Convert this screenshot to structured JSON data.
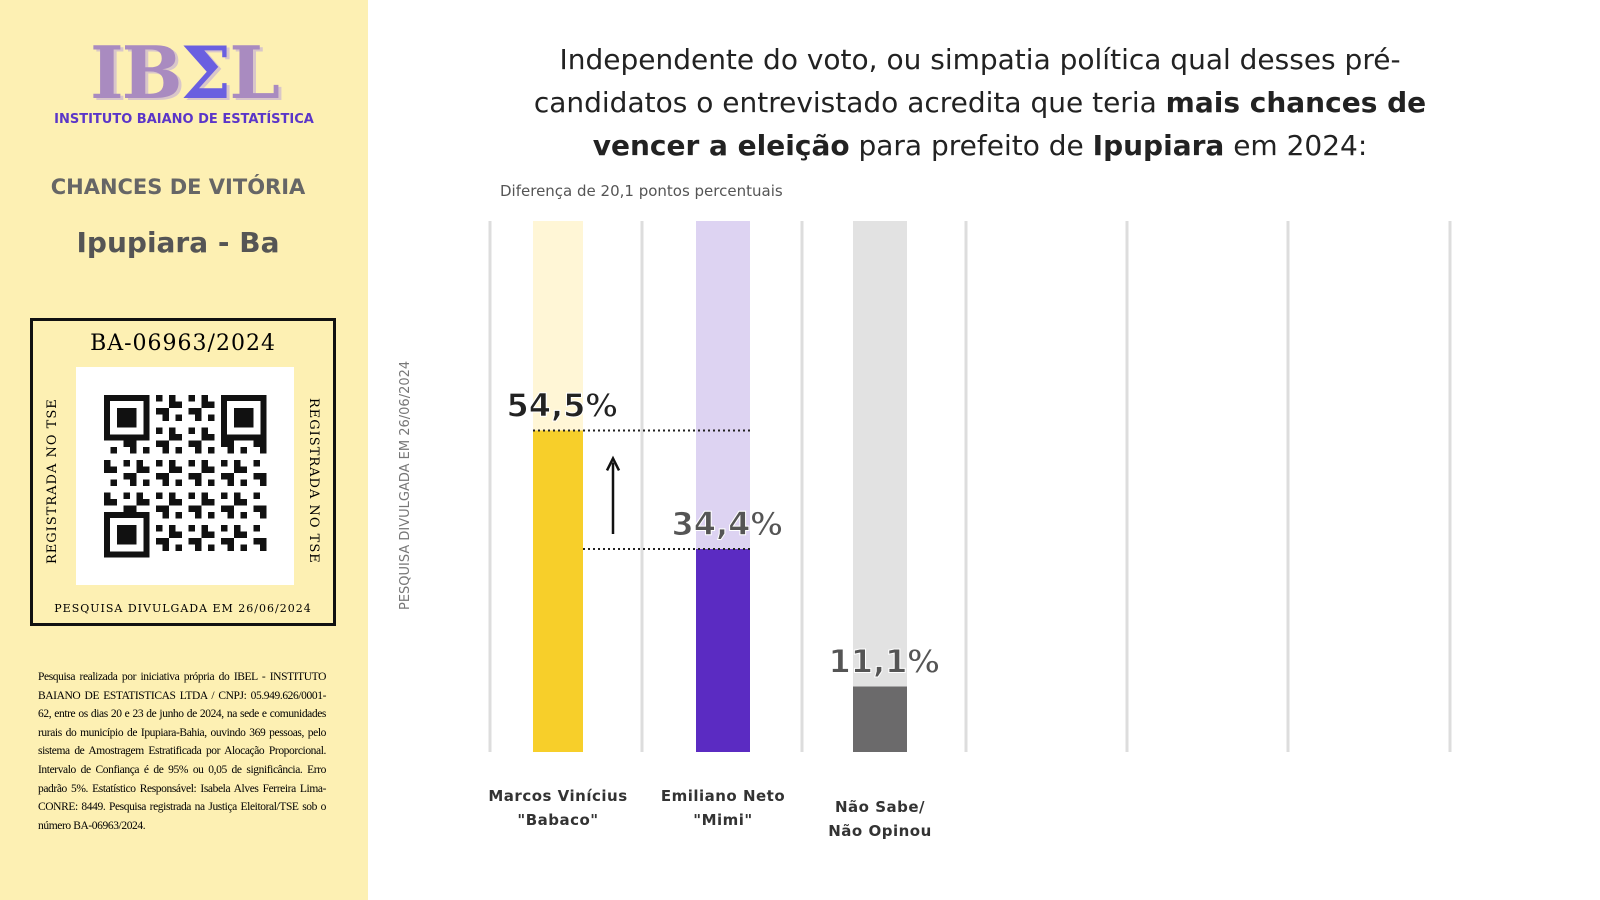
{
  "sidebar": {
    "logo": "IBΣL",
    "logo_parts": [
      "IB",
      "Σ",
      "L"
    ],
    "institute": "INSTITUTO BAIANO DE ESTATÍSTICA",
    "heading": "CHANCES DE VITÓRIA",
    "city": "Ipupiara - Ba",
    "registration": {
      "number": "BA-06963/2024",
      "side_label": "REGISTRADA NO TSE",
      "published": "PESQUISA DIVULGADA EM 26/06/2024"
    },
    "methodology": "Pesquisa realizada por iniciativa própria do IBEL - INSTITUTO BAIANO DE ESTATISTICAS LTDA / CNPJ: 05.949.626/0001-62, entre os dias 20 e 23 de junho de 2024, na sede e comunidades rurais do município de Ipupiara-Bahia, ouvindo 369 pessoas, pelo sistema de Amostragem Estratificada por Alocação Proporcional. Intervalo de Confiança é de 95% ou 0,05 de significância. Erro padrão 5%. Estatístico Responsável: Isabela Alves Ferreira Lima- CONRE: 8449. Pesquisa registrada na Justiça Eleitoral/TSE sob o número BA-06963/2024."
  },
  "chart_data": {
    "type": "bar",
    "title_parts": [
      "Independente do voto, ou simpatia política qual desses pré-candidatos o entrevistado acredita que teria ",
      "mais chances de vencer a eleição",
      " para prefeito de ",
      "Ipupiara",
      " em 2024:"
    ],
    "subtitle": "Diferença de 20,1  pontos percentuais",
    "side_label": "PESQUISA DIVULGADA EM 26/06/2024",
    "categories": [
      [
        "Marcos Vinícius",
        "\"Babaco\""
      ],
      [
        "Emiliano Neto",
        "\"Mimi\""
      ],
      [
        "Não Sabe/",
        "Não Opinou"
      ]
    ],
    "values": [
      54.5,
      34.4,
      11.1
    ],
    "labels": [
      "54,5%",
      "34,4%",
      "11,1%"
    ],
    "colors": [
      "#f7cf2a",
      "#5b2bc2",
      "#6b6a6b"
    ],
    "track_colors": [
      "#fff6d6",
      "#ddd3f2",
      "#e2e2e2"
    ],
    "ylim": [
      0,
      100
    ],
    "grid": true
  }
}
